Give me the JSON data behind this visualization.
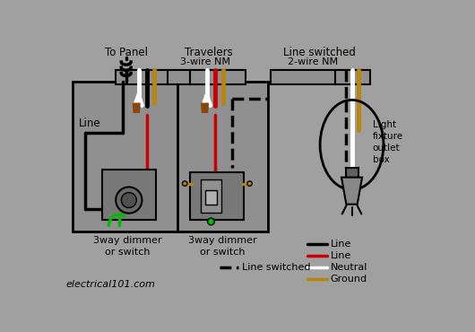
{
  "bg": "#a0a0a0",
  "black": "#000000",
  "red": "#cc0000",
  "white": "#ffffff",
  "yellow": "#b8860b",
  "green": "#00bb00",
  "brown": "#8B4513",
  "box_fill": "#909090",
  "switch_fill": "#787878",
  "labels": {
    "to_panel": "To Panel",
    "travelers": "Travelers",
    "line_switched": "Line switched",
    "three_wire": "3-wire NM",
    "two_wire": "2-wire NM",
    "line": "Line",
    "switch1": "3way dimmer\nor switch",
    "switch2": "3way dimmer\nor switch",
    "light": "Light\nfixture\noutlet\nbox",
    "website": "electrical101.com",
    "leg_line1": "Line",
    "leg_line2": "Line",
    "leg_neutral": "Neutral",
    "leg_ground": "Ground",
    "leg_switched": "Line switched"
  }
}
